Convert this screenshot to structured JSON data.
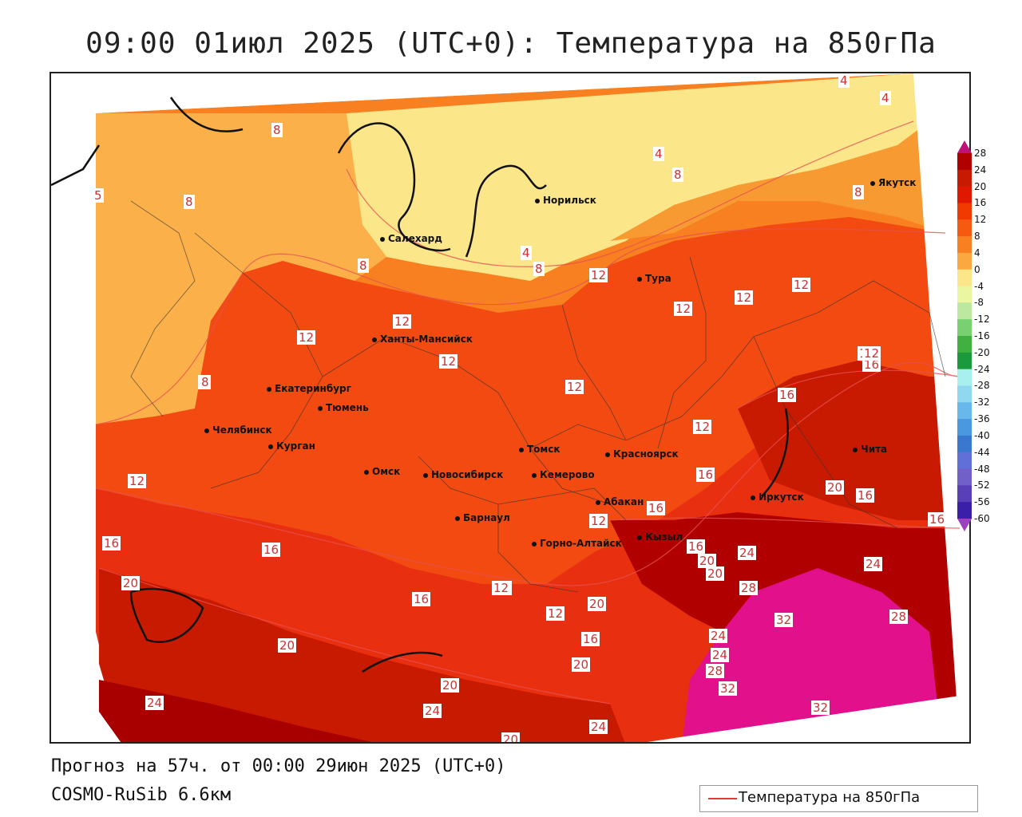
{
  "title": "09:00 01июл 2025 (UTC+0): Температура на 850гПа",
  "footer": {
    "forecast": "Прогноз на 57ч. от 00:00 29июн 2025 (UTC+0)",
    "model": "COSMO-RuSib 6.6км"
  },
  "legend": {
    "line_label": "Температура на 850гПа",
    "line_color": "#e23a3a"
  },
  "colorbar": {
    "ticks": [
      "28",
      "24",
      "20",
      "16",
      "12",
      "8",
      "4",
      "0",
      "-4",
      "-8",
      "-12",
      "-16",
      "-20",
      "-24",
      "-28",
      "-32",
      "-36",
      "-40",
      "-44",
      "-48",
      "-52",
      "-56",
      "-60"
    ],
    "colors": [
      "#b00000",
      "#c81a00",
      "#e01800",
      "#f03a00",
      "#f55a10",
      "#f88020",
      "#fba840",
      "#fce68a",
      "#eaf6a0",
      "#bde8a0",
      "#78d070",
      "#40b040",
      "#1a9a3a",
      "#a8f0f0",
      "#90d8f0",
      "#68b8ec",
      "#4a98e0",
      "#3a78d0",
      "#6070d8",
      "#7060c8",
      "#5a40b8",
      "#3a20a8",
      "#20108a"
    ]
  },
  "cities": [
    {
      "name": "Якутск"
    },
    {
      "name": "Норильск"
    },
    {
      "name": "Салехард"
    },
    {
      "name": "Тура"
    },
    {
      "name": "Ханты-Мансийск"
    },
    {
      "name": "Екатеринбург"
    },
    {
      "name": "Тюмень"
    },
    {
      "name": "Челябинск"
    },
    {
      "name": "Курган"
    },
    {
      "name": "Омск"
    },
    {
      "name": "Томск"
    },
    {
      "name": "Красноярск"
    },
    {
      "name": "Новосибирск"
    },
    {
      "name": "Кемерово"
    },
    {
      "name": "Абакан"
    },
    {
      "name": "Барнаул"
    },
    {
      "name": "Кызыл"
    },
    {
      "name": "Горно-Алтайск"
    },
    {
      "name": "Иркутск"
    },
    {
      "name": "Чита"
    }
  ],
  "contour_labels": [
    "4",
    "4",
    "4",
    "8",
    "8",
    "8",
    "8",
    "8",
    "8",
    "5",
    "8",
    "4",
    "8",
    "12",
    "12",
    "12",
    "12",
    "12",
    "12",
    "12",
    "12",
    "12",
    "12",
    "12",
    "12",
    "16",
    "16",
    "16",
    "16",
    "16",
    "16",
    "16",
    "16",
    "16",
    "16",
    "20",
    "20",
    "20",
    "20",
    "20",
    "20",
    "20",
    "24",
    "24",
    "24",
    "24",
    "24",
    "24",
    "28",
    "28",
    "28",
    "32",
    "32",
    "32",
    "12",
    "12",
    "12",
    "12",
    "16",
    "20",
    "24",
    "20",
    "28"
  ]
}
